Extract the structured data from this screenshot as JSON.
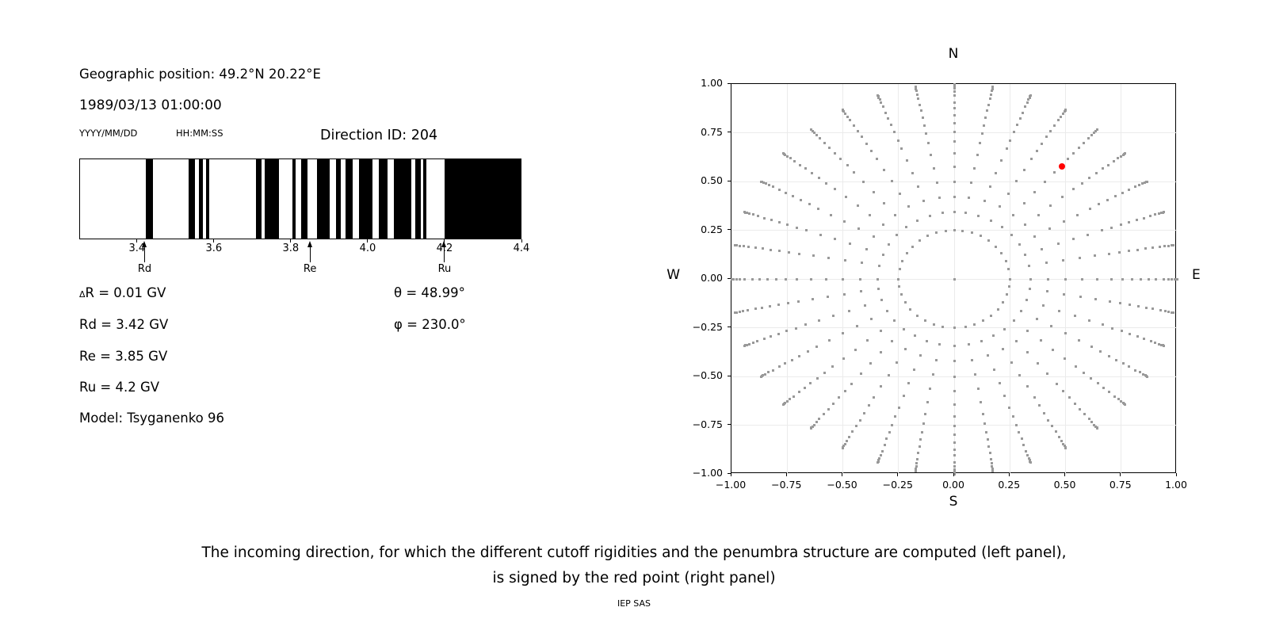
{
  "left_panel": {
    "geo_position": "Geographic position: 49.2°N 20.22°E",
    "datetime": "1989/03/13 01:00:00",
    "date_format": "YYYY/MM/DD",
    "time_format": "HH:MM:SS",
    "direction_id": "Direction ID: 204",
    "params": {
      "delta_symbol": "Δ",
      "delta_rest": "R = 0.01 GV",
      "rd": "Rd = 3.42 GV",
      "re": "Re = 3.85 GV",
      "ru": "Ru = 4.2 GV",
      "model": "Model: Tsyganenko 96",
      "theta": "θ = 48.99°",
      "phi": "φ = 230.0°"
    }
  },
  "caption": {
    "line1": "The incoming direction, for which the different cutoff rigidities and the penumbra structure are computed (left panel),",
    "line2": "is signed by the red point (right panel)",
    "credit": "IEP SAS"
  },
  "chart_data": [
    {
      "type": "bar",
      "title": "penumbra barcode (black = forbidden rigidity, white = allowed)",
      "xlim": [
        3.25,
        4.4
      ],
      "xticks": [
        3.4,
        3.6,
        3.8,
        4.0,
        4.2,
        4.4
      ],
      "xtick_labels": [
        "3.4",
        "3.6",
        "3.8",
        "4.0",
        "4.2",
        "4.4"
      ],
      "band_color": "#000000",
      "forbidden_bands_gv": [
        [
          3.422,
          3.44
        ],
        [
          3.534,
          3.549
        ],
        [
          3.561,
          3.571
        ],
        [
          3.579,
          3.588
        ],
        [
          3.71,
          3.724
        ],
        [
          3.731,
          3.77
        ],
        [
          3.804,
          3.813
        ],
        [
          3.828,
          3.844
        ],
        [
          3.869,
          3.902
        ],
        [
          3.919,
          3.931
        ],
        [
          3.943,
          3.962
        ],
        [
          3.979,
          4.013
        ],
        [
          4.03,
          4.053
        ],
        [
          4.069,
          4.114
        ],
        [
          4.125,
          4.14
        ],
        [
          4.145,
          4.153
        ],
        [
          4.201,
          4.4
        ]
      ],
      "markers": [
        {
          "label": "Rd",
          "value": 3.42
        },
        {
          "label": "Re",
          "value": 3.85
        },
        {
          "label": "Ru",
          "value": 4.2
        }
      ]
    },
    {
      "type": "scatter",
      "title": "incoming direction grid",
      "xlim": [
        -1,
        1
      ],
      "ylim": [
        -1,
        1
      ],
      "xticks": [
        -1,
        -0.75,
        -0.5,
        -0.25,
        0,
        0.25,
        0.5,
        0.75,
        1
      ],
      "xtick_labels": [
        "−1.00",
        "−0.75",
        "−0.50",
        "−0.25",
        "0.00",
        "0.25",
        "0.50",
        "0.75",
        "1.00"
      ],
      "yticks": [
        1,
        0.75,
        0.5,
        0.25,
        0,
        -0.25,
        -0.5,
        -0.75,
        -1
      ],
      "ytick_labels": [
        "1.00",
        "0.75",
        "0.50",
        "0.25",
        "0.00",
        "−0.25",
        "−0.50",
        "−0.75",
        "−1.00"
      ],
      "grid_step": 0.25,
      "grid_color": "#ebebeb",
      "dot_color": "#999999",
      "red_color": "#ff0000",
      "compass": {
        "n": "N",
        "s": "S",
        "e": "E",
        "w": "W"
      },
      "azimuth_step_deg": 10,
      "zenith_levels_deg": [
        14.5,
        20,
        25,
        30,
        35,
        40,
        45,
        49,
        53,
        57,
        61,
        65,
        70,
        74,
        78,
        82,
        86,
        90
      ],
      "radius_mapping": "sin(zenith)",
      "twist_deg": 2,
      "center_dot": true,
      "red_point": {
        "x": 0.485,
        "y": 0.578,
        "theta_deg": 48.99,
        "phi_deg": 230.0
      }
    }
  ]
}
